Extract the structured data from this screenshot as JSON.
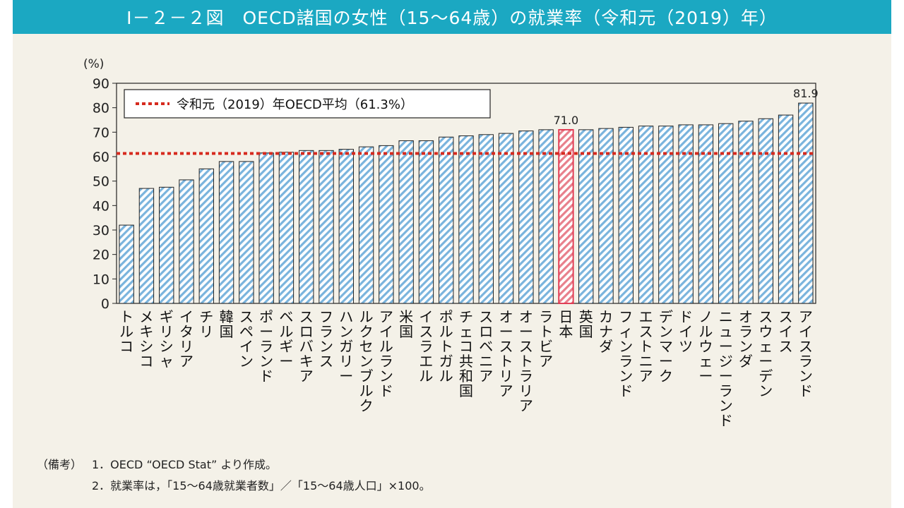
{
  "header": {
    "title": "Ⅰ－２－２図　OECD諸国の女性（15～64歳）の就業率（令和元（2019）年）"
  },
  "chart_data": {
    "type": "bar",
    "title": "Ⅰ－２－２図　OECD諸国の女性（15～64歳）の就業率（令和元（2019）年）",
    "ylabel": "(%)",
    "ylim": [
      0,
      90
    ],
    "yticks": [
      0,
      10,
      20,
      30,
      40,
      50,
      60,
      70,
      80,
      90
    ],
    "categories": [
      "トルコ",
      "メキシコ",
      "ギリシャ",
      "イタリア",
      "チリ",
      "韓国",
      "スペイン",
      "ポーランド",
      "ベルギー",
      "スロバキア",
      "フランス",
      "ハンガリー",
      "ルクセンブルク",
      "アイルランド",
      "米国",
      "イスラエル",
      "ポルトガル",
      "チェコ共和国",
      "スロベニア",
      "オーストリア",
      "オーストラリア",
      "ラトビア",
      "日本",
      "英国",
      "カナダ",
      "フィンランド",
      "エストニア",
      "デンマーク",
      "ドイツ",
      "ノルウェー",
      "ニュージーランド",
      "オランダ",
      "スウェーデン",
      "スイス",
      "アイスランド"
    ],
    "values": [
      32.0,
      47.0,
      47.5,
      50.5,
      55.0,
      58.0,
      58.0,
      61.5,
      61.8,
      62.5,
      62.5,
      63.0,
      64.0,
      64.5,
      66.5,
      66.5,
      68.0,
      68.5,
      69.0,
      69.5,
      70.5,
      71.0,
      71.0,
      71.0,
      71.5,
      72.0,
      72.5,
      72.5,
      73.0,
      73.0,
      73.5,
      74.5,
      75.5,
      77.0,
      81.9
    ],
    "highlight_index": 22,
    "data_labels": [
      {
        "index": 22,
        "text": "71.0"
      },
      {
        "index": 34,
        "text": "81.9"
      }
    ],
    "reference_line": {
      "value": 61.3,
      "label": "令和元（2019）年OECD平均（61.3%）"
    },
    "legend_position": "top-left",
    "grid": false
  },
  "notes": {
    "label": "（備考）",
    "items": [
      "1．OECD “OECD Stat” より作成。",
      "2．就業率は，「15～64歳就業者数」／「15～64歳人口」×100。"
    ]
  },
  "colors": {
    "header_bg": "#1ba8c2",
    "panel_bg": "#f4f1e8",
    "bar_stripe": "#7ab4dd",
    "bar_outline": "#222222",
    "highlight_stripe": "#e8808c",
    "highlight_outline": "#e0304a",
    "reference_line": "#d62a1e"
  }
}
